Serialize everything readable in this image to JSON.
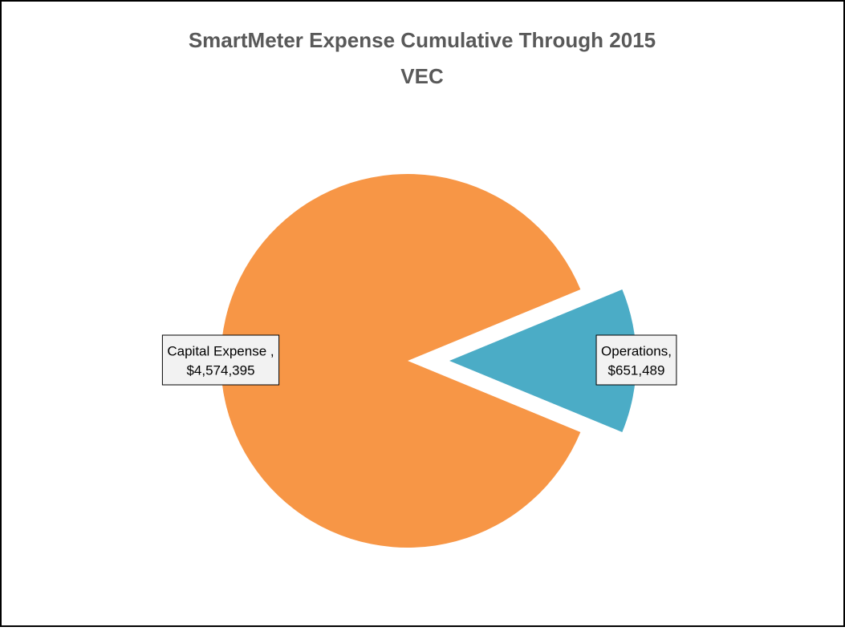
{
  "chart_data": {
    "type": "pie",
    "title": "SmartMeter Expense Cumulative Through 2015",
    "subtitle": "VEC",
    "categories": [
      "Capital Expense ,",
      "Operations,"
    ],
    "values": [
      4574395,
      651489
    ],
    "value_labels": [
      "$4,574,395",
      "$651,489"
    ],
    "colors": [
      "#f79646",
      "#4bacc6"
    ],
    "exploded": [
      false,
      true
    ]
  }
}
